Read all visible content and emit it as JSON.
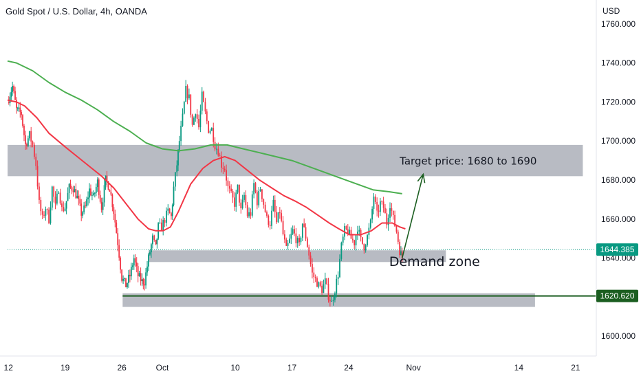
{
  "header": {
    "title": "Gold Spot / U.S. Dollar, 4h, OANDA"
  },
  "chart_data": {
    "type": "candlestick",
    "title": "Gold Spot / U.S. Dollar, 4h, OANDA",
    "y_unit": "USD",
    "ylim": [
      1585,
      1765
    ],
    "y_ticks": [
      1600,
      1620,
      1640,
      1660,
      1680,
      1700,
      1720,
      1740,
      1760
    ],
    "y_tick_labels": [
      "1600.000",
      "1620.000",
      "1640.000",
      "1660.000",
      "1680.000",
      "1700.000",
      "1720.000",
      "1740.000",
      "1760.000"
    ],
    "x_ticks": [
      {
        "label": "12",
        "day": 12
      },
      {
        "label": "19",
        "day": 19
      },
      {
        "label": "26",
        "day": 26
      },
      {
        "label": "Oct",
        "day": 31
      },
      {
        "label": "10",
        "day": 40
      },
      {
        "label": "17",
        "day": 47
      },
      {
        "label": "24",
        "day": 54
      },
      {
        "label": "Nov",
        "day": 62
      },
      {
        "label": "14",
        "day": 75
      },
      {
        "label": "21",
        "day": 82
      }
    ],
    "price_path": [
      [
        11.9,
        1720
      ],
      [
        12.5,
        1728
      ],
      [
        13.0,
        1716
      ],
      [
        13.6,
        1714
      ],
      [
        14.1,
        1698
      ],
      [
        14.6,
        1703
      ],
      [
        15.0,
        1698
      ],
      [
        15.4,
        1688
      ],
      [
        15.8,
        1668
      ],
      [
        16.2,
        1660
      ],
      [
        16.6,
        1666
      ],
      [
        17.0,
        1660
      ],
      [
        17.4,
        1676
      ],
      [
        17.8,
        1666
      ],
      [
        18.2,
        1676
      ],
      [
        18.6,
        1665
      ],
      [
        19.0,
        1666
      ],
      [
        19.5,
        1676
      ],
      [
        20.0,
        1676
      ],
      [
        20.5,
        1671
      ],
      [
        21.0,
        1663
      ],
      [
        21.5,
        1666
      ],
      [
        22.0,
        1675
      ],
      [
        22.5,
        1671
      ],
      [
        23.0,
        1679
      ],
      [
        23.5,
        1666
      ],
      [
        24.0,
        1680
      ],
      [
        24.5,
        1676
      ],
      [
        25.0,
        1664
      ],
      [
        25.5,
        1648
      ],
      [
        26.0,
        1630
      ],
      [
        26.5,
        1626
      ],
      [
        27.0,
        1631
      ],
      [
        27.5,
        1640
      ],
      [
        28.0,
        1631
      ],
      [
        28.5,
        1628
      ],
      [
        28.8,
        1628
      ],
      [
        29.3,
        1640
      ],
      [
        29.8,
        1650
      ],
      [
        30.2,
        1645
      ],
      [
        30.5,
        1656
      ],
      [
        30.9,
        1656
      ],
      [
        31.3,
        1660
      ],
      [
        31.7,
        1664
      ],
      [
        32.1,
        1661
      ],
      [
        32.4,
        1676
      ],
      [
        32.8,
        1688
      ],
      [
        33.1,
        1700
      ],
      [
        33.5,
        1712
      ],
      [
        33.9,
        1726
      ],
      [
        34.3,
        1722
      ],
      [
        34.7,
        1708
      ],
      [
        35.1,
        1716
      ],
      [
        35.5,
        1707
      ],
      [
        35.9,
        1723
      ],
      [
        36.3,
        1714
      ],
      [
        36.7,
        1706
      ],
      [
        37.1,
        1706
      ],
      [
        37.5,
        1698
      ],
      [
        37.9,
        1695
      ],
      [
        38.3,
        1688
      ],
      [
        38.7,
        1686
      ],
      [
        39.1,
        1676
      ],
      [
        39.5,
        1672
      ],
      [
        39.9,
        1668
      ],
      [
        40.3,
        1676
      ],
      [
        40.7,
        1664
      ],
      [
        41.1,
        1672
      ],
      [
        41.5,
        1662
      ],
      [
        41.9,
        1663
      ],
      [
        42.3,
        1678
      ],
      [
        42.7,
        1669
      ],
      [
        43.1,
        1676
      ],
      [
        43.5,
        1668
      ],
      [
        43.9,
        1660
      ],
      [
        44.3,
        1658
      ],
      [
        44.7,
        1668
      ],
      [
        45.1,
        1658
      ],
      [
        45.5,
        1664
      ],
      [
        45.9,
        1652
      ],
      [
        46.3,
        1644
      ],
      [
        46.7,
        1649
      ],
      [
        47.1,
        1654
      ],
      [
        47.5,
        1650
      ],
      [
        47.9,
        1646
      ],
      [
        48.3,
        1658
      ],
      [
        48.7,
        1651
      ],
      [
        49.1,
        1642
      ],
      [
        49.5,
        1632
      ],
      [
        49.9,
        1629
      ],
      [
        50.3,
        1626
      ],
      [
        50.7,
        1624
      ],
      [
        51.1,
        1628
      ],
      [
        51.5,
        1621
      ],
      [
        51.9,
        1617
      ],
      [
        52.3,
        1624
      ],
      [
        52.7,
        1632
      ],
      [
        53.1,
        1646
      ],
      [
        53.5,
        1654
      ],
      [
        53.9,
        1654
      ],
      [
        54.3,
        1650
      ],
      [
        54.7,
        1648
      ],
      [
        55.1,
        1656
      ],
      [
        55.5,
        1649
      ],
      [
        55.9,
        1646
      ],
      [
        56.3,
        1651
      ],
      [
        56.7,
        1658
      ],
      [
        57.1,
        1672
      ],
      [
        57.5,
        1662
      ],
      [
        57.9,
        1668
      ],
      [
        58.3,
        1666
      ],
      [
        58.7,
        1658
      ],
      [
        59.1,
        1668
      ],
      [
        59.5,
        1660
      ],
      [
        59.9,
        1654
      ],
      [
        60.3,
        1644
      ],
      [
        60.6,
        1640
      ]
    ],
    "series": [
      {
        "name": "",
        "color": "#4caf50",
        "points": [
          [
            11.9,
            1741
          ],
          [
            13,
            1740
          ],
          [
            15,
            1736
          ],
          [
            17,
            1730
          ],
          [
            19,
            1725
          ],
          [
            21,
            1721
          ],
          [
            23,
            1716
          ],
          [
            25,
            1710
          ],
          [
            27,
            1705
          ],
          [
            29,
            1699
          ],
          [
            31,
            1696
          ],
          [
            33,
            1695
          ],
          [
            35,
            1696
          ],
          [
            37,
            1698
          ],
          [
            39,
            1698
          ],
          [
            41,
            1696
          ],
          [
            43,
            1694
          ],
          [
            45,
            1692
          ],
          [
            47,
            1690
          ],
          [
            49,
            1687
          ],
          [
            51,
            1684
          ],
          [
            53,
            1681
          ],
          [
            55,
            1678
          ],
          [
            57,
            1675
          ],
          [
            59,
            1674
          ],
          [
            60.6,
            1673
          ]
        ]
      },
      {
        "name": "",
        "color": "#f23645",
        "points": [
          [
            11.9,
            1721
          ],
          [
            13,
            1720
          ],
          [
            14,
            1718
          ],
          [
            15.5,
            1712
          ],
          [
            17,
            1704
          ],
          [
            19,
            1697
          ],
          [
            20.5,
            1692
          ],
          [
            22,
            1687
          ],
          [
            23.5,
            1682
          ],
          [
            25,
            1676
          ],
          [
            26.5,
            1668
          ],
          [
            28,
            1660
          ],
          [
            29.3,
            1655
          ],
          [
            30.2,
            1654
          ],
          [
            31.1,
            1654
          ],
          [
            32,
            1656
          ],
          [
            33,
            1664
          ],
          [
            34.5,
            1678
          ],
          [
            36,
            1686
          ],
          [
            37.3,
            1690
          ],
          [
            38.7,
            1692
          ],
          [
            40,
            1690
          ],
          [
            41.5,
            1685
          ],
          [
            43,
            1680
          ],
          [
            44.5,
            1676
          ],
          [
            46,
            1672
          ],
          [
            47.5,
            1669
          ],
          [
            48.8,
            1666
          ],
          [
            50.2,
            1662
          ],
          [
            51.6,
            1658
          ],
          [
            52.8,
            1655
          ],
          [
            54.1,
            1652
          ],
          [
            55.5,
            1652
          ],
          [
            56.8,
            1654
          ],
          [
            58.1,
            1658
          ],
          [
            59.4,
            1658
          ],
          [
            60.3,
            1656
          ],
          [
            61.0,
            1655
          ]
        ]
      }
    ],
    "zones": [
      {
        "from_day": 11.9,
        "to_day": 82.9,
        "y_low": 1682,
        "y_high": 1698,
        "color": "#b2b5be"
      },
      {
        "from_day": 29.3,
        "to_day": 66.0,
        "y_low": 1638,
        "y_high": 1644,
        "color": "#b2b5be"
      },
      {
        "from_day": 26.1,
        "to_day": 77.0,
        "y_low": 1615,
        "y_high": 1622,
        "color": "#b2b5be"
      }
    ],
    "horizontal_lines": [
      {
        "value": 1620.62,
        "from_day": 26.1,
        "color": "#1b5e20"
      },
      {
        "value": 1644.385,
        "from_day": 11.9,
        "color": "#089981",
        "style": "dotted"
      }
    ],
    "arrow": {
      "from": [
        60.6,
        1640
      ],
      "to": [
        63.2,
        1683
      ],
      "color": "#1b5e20"
    },
    "annotations": [
      {
        "text": "Target price: 1680 to 1690",
        "day": 60.3,
        "value": 1688,
        "size": 15
      },
      {
        "text": "Demand zone",
        "day": 59.0,
        "value": 1636,
        "size": 19
      }
    ],
    "price_labels": [
      {
        "text": "1644.385",
        "value": 1644.385,
        "color": "#089981"
      },
      {
        "text": "1620.620",
        "value": 1620.62,
        "color": "#1b5e20"
      }
    ]
  }
}
